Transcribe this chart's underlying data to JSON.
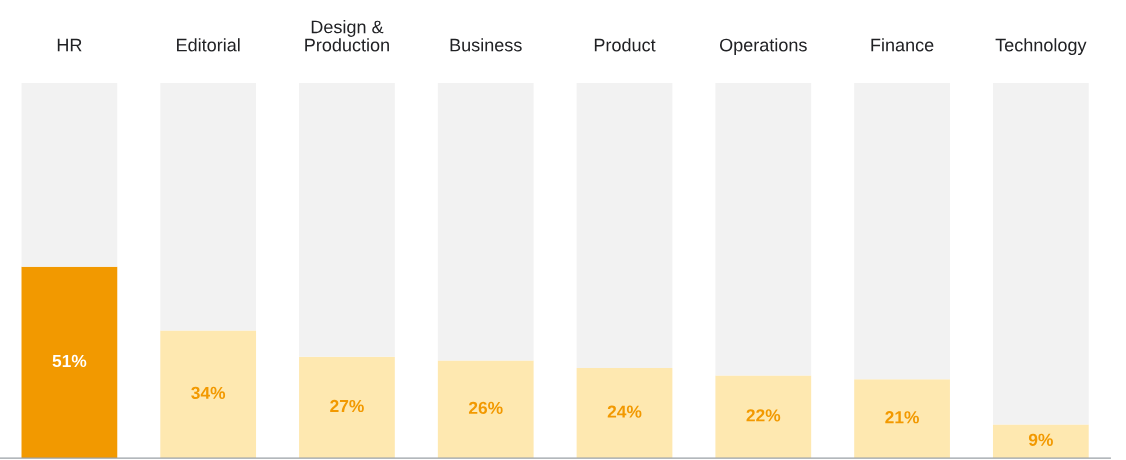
{
  "chart_data": {
    "type": "bar",
    "stacked": true,
    "categories": [
      "HR",
      "Editorial",
      "Design & Production",
      "Business",
      "Product",
      "Operations",
      "Finance",
      "Technology"
    ],
    "series": [
      {
        "colors": [
          "#f29900",
          "#fee8b0",
          "#fee8b0",
          "#fee8b0",
          "#fee8b0",
          "#fee8b0",
          "#fee8b0",
          "#fee8b0"
        ],
        "values": [
          51,
          34,
          27,
          26,
          24,
          22,
          21,
          9
        ],
        "value_labels": [
          "51%",
          "34%",
          "27%",
          "26%",
          "24%",
          "22%",
          "21%",
          "9%"
        ]
      },
      {
        "color": "#f2f2f2",
        "values": [
          49,
          66,
          73,
          74,
          76,
          78,
          79,
          91
        ]
      }
    ],
    "ylim": [
      0,
      100
    ],
    "tick_labels": "x",
    "grid": false,
    "legend": false
  }
}
